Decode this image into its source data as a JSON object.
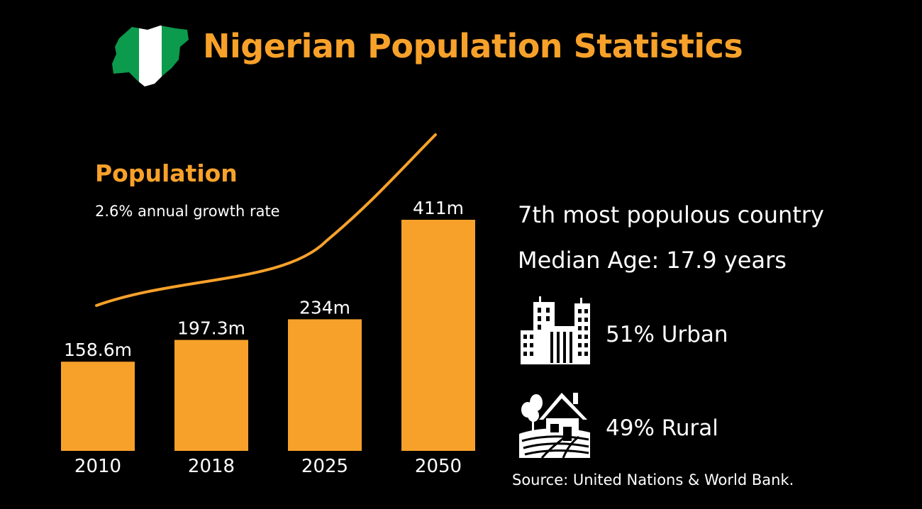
{
  "header": {
    "title": "Nigerian Population Statistics",
    "flag_icon": "nigeria-map-flag-icon",
    "title_color": "#f7a12a",
    "flag_colors": [
      "#0c9a4c",
      "#ffffff",
      "#0c9a4c"
    ]
  },
  "population": {
    "heading": "Population",
    "subtitle": "2.6% annual growth rate"
  },
  "chart_data": {
    "type": "bar",
    "title": "",
    "xlabel": "",
    "ylabel": "",
    "ylim": [
      0,
      411
    ],
    "grid": false,
    "bar_color": "#f7a12a",
    "categories": [
      "2010",
      "2018",
      "2025",
      "2050"
    ],
    "values": [
      158.6,
      197.3,
      234,
      411
    ],
    "data_labels": [
      "158.6m",
      "197.3m",
      "234m",
      "411m"
    ],
    "trend_line": "rising curve above bars",
    "trend_color": "#f7a12a"
  },
  "facts": {
    "rank": "7th most populous country",
    "median_age": "Median Age: 17.9 years",
    "urban": {
      "label": "51% Urban",
      "icon": "city-buildings-icon"
    },
    "rural": {
      "label": "49% Rural",
      "icon": "farmhouse-icon"
    }
  },
  "source": "Source: United Nations & World Bank."
}
